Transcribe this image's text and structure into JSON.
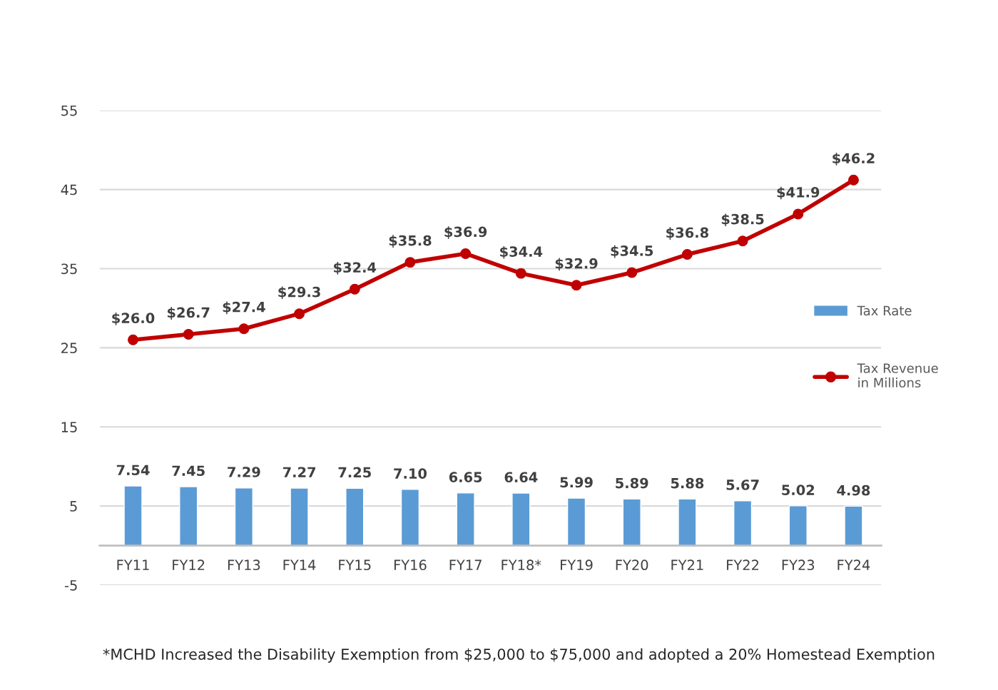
{
  "chart_data": {
    "type": "bar",
    "categories": [
      "FY11",
      "FY12",
      "FY13",
      "FY14",
      "FY15",
      "FY16",
      "FY17",
      "FY18*",
      "FY19",
      "FY20",
      "FY21",
      "FY22",
      "FY23",
      "FY24"
    ],
    "series": [
      {
        "name": "Tax Rate",
        "color": "#5b9bd5",
        "values": [
          7.54,
          7.45,
          7.29,
          7.27,
          7.25,
          7.1,
          6.65,
          6.64,
          5.99,
          5.89,
          5.88,
          5.67,
          5.02,
          4.98
        ],
        "value_labels": [
          "7.54",
          "7.45",
          "7.29",
          "7.27",
          "7.25",
          "7.10",
          "6.65",
          "6.64",
          "5.99",
          "5.89",
          "5.88",
          "5.67",
          "5.02",
          "4.98"
        ]
      },
      {
        "name": "Tax Revenue\nin Millions",
        "type": "line",
        "color": "#c00000",
        "marker": "circle",
        "values": [
          26.0,
          26.7,
          27.4,
          29.3,
          32.4,
          35.8,
          36.9,
          34.4,
          32.9,
          34.5,
          36.8,
          38.5,
          41.9,
          46.2
        ],
        "value_labels": [
          "$26.0",
          "$26.7",
          "$27.4",
          "$29.3",
          "$32.4",
          "$35.8",
          "$36.9",
          "$34.4",
          "$32.9",
          "$34.5",
          "$36.8",
          "$38.5",
          "$41.9",
          "$46.2"
        ]
      }
    ],
    "ylim": [
      -5,
      55
    ],
    "yticks": [
      -5,
      5,
      15,
      25,
      35,
      45,
      55
    ],
    "grid": "y",
    "legend": "right",
    "annotations": [
      "*MCHD Increased the Disability Exemption from $25,000 to $75,000 and adopted a 20% Homestead Exemption"
    ]
  }
}
